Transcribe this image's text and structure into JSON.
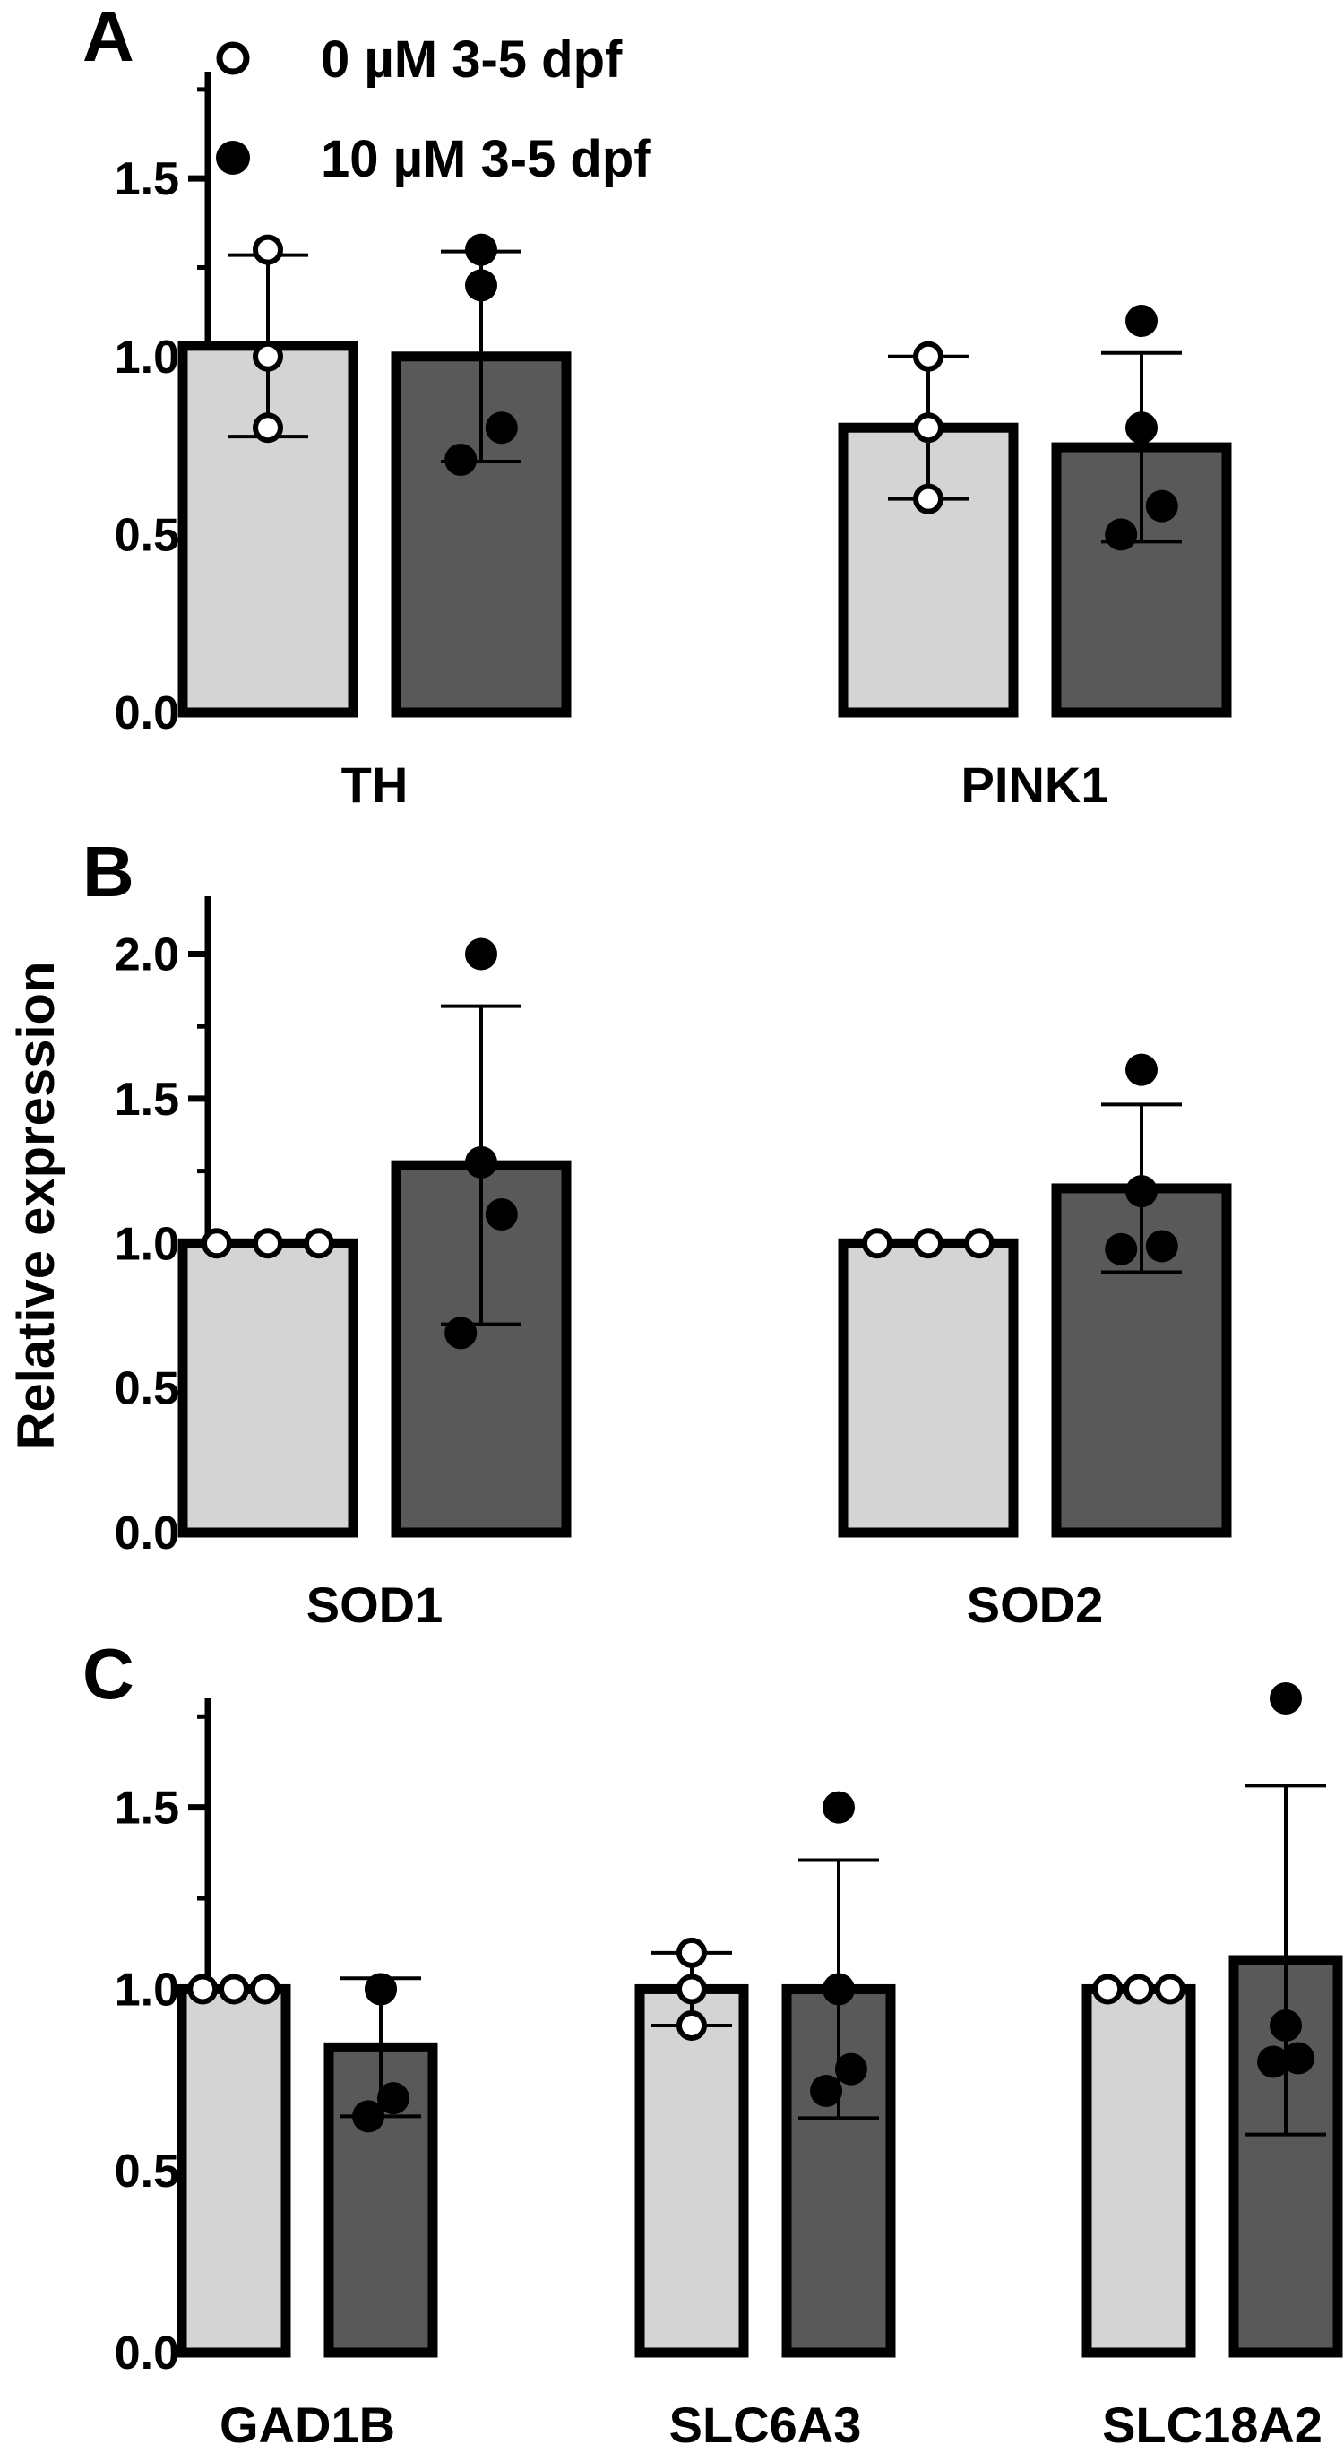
{
  "y_axis_label": "Relative expression",
  "legend": [
    {
      "label": "0 µM 3-5 dpf",
      "marker": "open-circle",
      "fill": "#d4d4d4"
    },
    {
      "label": "10 µM 3-5 dpf",
      "marker": "filled-circle",
      "fill": "#595959"
    }
  ],
  "colors": {
    "control_bar": "#d4d4d4",
    "treated_bar": "#595959",
    "outline": "#000000"
  },
  "chart_data": [
    {
      "panel": "A",
      "type": "bar",
      "ylim": [
        0,
        1.8
      ],
      "yticks": [
        "0.0",
        "0.5",
        "1.0",
        "1.5"
      ],
      "categories": [
        "TH",
        "PINK1"
      ],
      "series": [
        {
          "name": "0 µM 3-5 dpf",
          "values": [
            1.03,
            0.8
          ],
          "sd": [
            0.255,
            0.2
          ],
          "points": [
            [
              1.3,
              1.0,
              0.8
            ],
            [
              1.0,
              0.8,
              0.6
            ]
          ]
        },
        {
          "name": "10 µM 3-5 dpf",
          "values": [
            1.0,
            0.745
          ],
          "sd": [
            0.295,
            0.265
          ],
          "points": [
            [
              1.3,
              1.2,
              0.8,
              0.71
            ],
            [
              1.1,
              0.8,
              0.58,
              0.5
            ]
          ]
        }
      ]
    },
    {
      "panel": "B",
      "type": "bar",
      "ylim": [
        0,
        2.2
      ],
      "yticks": [
        "0.0",
        "0.5",
        "1.0",
        "1.5",
        "2.0"
      ],
      "categories": [
        "SOD1",
        "SOD2"
      ],
      "series": [
        {
          "name": "0 µM 3-5 dpf",
          "values": [
            1.0,
            1.0
          ],
          "sd": [
            0,
            0
          ],
          "points": [
            [
              1.0,
              1.0,
              1.0
            ],
            [
              1.0,
              1.0,
              1.0
            ]
          ]
        },
        {
          "name": "10 µM 3-5 dpf",
          "values": [
            1.27,
            1.19
          ],
          "sd": [
            0.55,
            0.29
          ],
          "points": [
            [
              2.0,
              1.28,
              1.1,
              0.69
            ],
            [
              1.6,
              1.18,
              0.99,
              0.98
            ]
          ]
        }
      ]
    },
    {
      "panel": "C",
      "type": "bar",
      "ylim": [
        0,
        1.8
      ],
      "yticks": [
        "0.0",
        "0.5",
        "1.0",
        "1.5"
      ],
      "categories": [
        "GAD1B",
        "SLC6A3",
        "SLC18A2"
      ],
      "series": [
        {
          "name": "0 µM 3-5 dpf",
          "values": [
            1.0,
            1.0,
            1.0
          ],
          "sd": [
            0,
            0.1,
            0
          ],
          "points": [
            [
              1.0,
              1.0,
              1.0
            ],
            [
              1.1,
              1.0,
              0.9
            ],
            [
              1.0,
              1.0,
              1.0
            ]
          ]
        },
        {
          "name": "10 µM 3-5 dpf",
          "values": [
            0.84,
            1.0,
            1.08
          ],
          "sd": [
            0.19,
            0.355,
            0.48
          ],
          "points": [
            [
              1.0,
              1.0,
              0.7,
              0.65
            ],
            [
              1.5,
              1.0,
              0.78,
              0.72
            ],
            [
              1.8,
              0.9,
              0.81,
              0.8
            ]
          ]
        }
      ]
    }
  ]
}
